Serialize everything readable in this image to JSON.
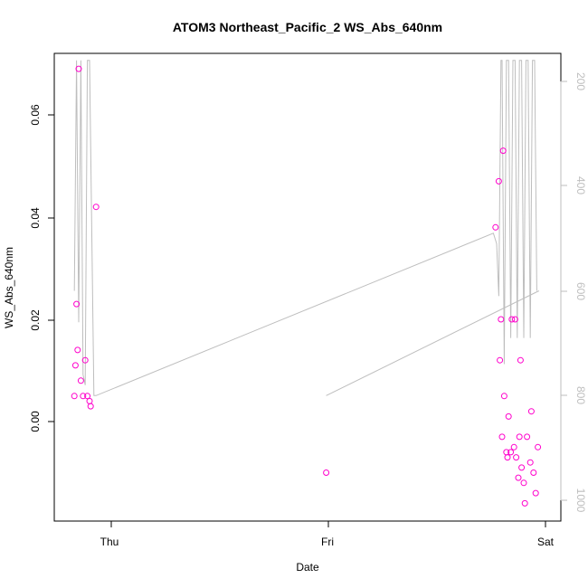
{
  "chart_data": {
    "type": "scatter",
    "title": "ATOM3 Northeast_Pacific_2 WS_Abs_640nm",
    "xlabel": "Date",
    "ylabel": "WS_Abs_640nm",
    "x_ticks": [
      "Thu",
      "Fri",
      "Sat"
    ],
    "y_ticks": [
      "0.00",
      "0.02",
      "0.04",
      "0.06"
    ],
    "y_right_ticks": [
      "200",
      "400",
      "600",
      "800",
      "1000"
    ],
    "xlim": [
      -0.21,
      2.05
    ],
    "ylim": [
      -0.019,
      0.0725
    ],
    "y_right_lim": [
      1040,
      150
    ],
    "grid": false,
    "point_color": "#ff00cc",
    "line_color": "#bebebe",
    "series": [
      {
        "x": [
          -0.17,
          -0.165,
          -0.16,
          -0.155,
          -0.15,
          -0.14,
          -0.13,
          -0.12,
          -0.11,
          -0.1,
          -0.095,
          -0.07,
          0.99,
          1.77,
          1.785,
          1.79,
          1.795,
          1.8,
          1.805,
          1.81,
          1.82,
          1.825,
          1.83,
          1.84,
          1.845,
          1.855,
          1.86,
          1.865,
          1.875,
          1.88,
          1.885,
          1.89,
          1.9,
          1.905,
          1.915,
          1.93,
          1.935,
          1.945,
          1.955,
          1.965
        ],
        "y": [
          0.005,
          0.011,
          0.023,
          0.014,
          0.069,
          0.008,
          0.005,
          0.012,
          0.005,
          0.004,
          0.003,
          0.042,
          -0.01,
          0.038,
          0.047,
          0.012,
          0.02,
          -0.003,
          0.053,
          0.005,
          -0.006,
          -0.007,
          0.001,
          -0.006,
          0.02,
          -0.005,
          0.02,
          -0.007,
          -0.011,
          -0.003,
          0.012,
          -0.009,
          -0.012,
          -0.016,
          -0.003,
          -0.008,
          0.002,
          -0.01,
          -0.014,
          -0.005
        ]
      }
    ],
    "pressure_line": {
      "x": [
        -0.17,
        -0.16,
        -0.15,
        -0.14,
        -0.13,
        -0.12,
        -0.11,
        -0.1,
        -0.08,
        -0.07,
        1.76,
        1.775,
        1.785,
        1.795,
        1.8,
        1.81,
        1.82,
        1.83,
        1.84,
        1.85,
        1.86,
        1.87,
        1.88,
        1.89,
        1.9,
        1.91,
        1.92,
        1.93,
        1.94,
        1.95,
        1.96
      ],
      "y": [
        600,
        160,
        660,
        160,
        760,
        780,
        160,
        160,
        800,
        800,
        490,
        510,
        610,
        160,
        160,
        740,
        160,
        160,
        690,
        160,
        160,
        690,
        160,
        160,
        690,
        160,
        160,
        690,
        160,
        160,
        600
      ]
    },
    "pressure_line_2": {
      "x": [
        0.99,
        1.97
      ],
      "y": [
        800,
        600
      ]
    }
  }
}
